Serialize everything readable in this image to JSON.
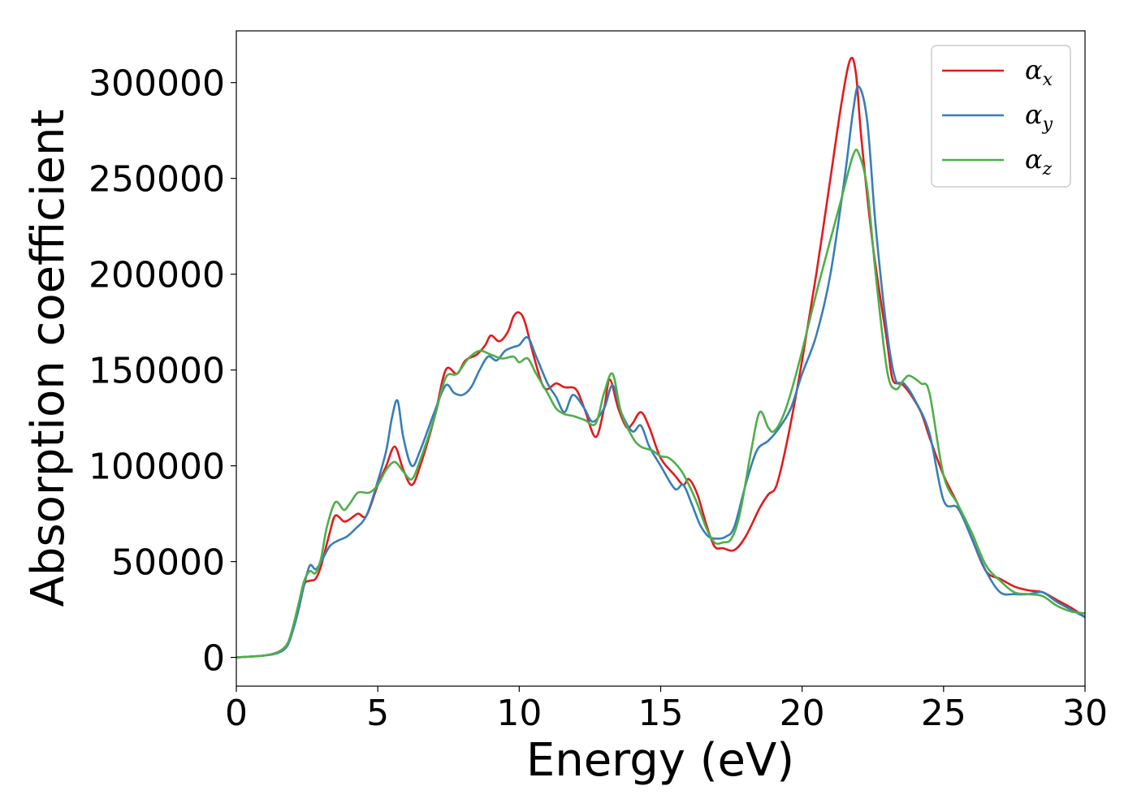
{
  "chart_data": {
    "type": "line",
    "xlabel": "Energy (eV)",
    "ylabel": "Absorption coefficient",
    "xlim": [
      0,
      30
    ],
    "ylim": [
      -15000,
      327000
    ],
    "xticks": [
      0,
      5,
      10,
      15,
      20,
      25,
      30
    ],
    "xtick_labels": [
      "0",
      "5",
      "10",
      "15",
      "20",
      "25",
      "30"
    ],
    "yticks": [
      0,
      50000,
      100000,
      150000,
      200000,
      250000,
      300000
    ],
    "ytick_labels": [
      "0",
      "50000",
      "100000",
      "150000",
      "200000",
      "250000",
      "300000"
    ],
    "grid": false,
    "legend_position": "top-right",
    "series": [
      {
        "name": "αx",
        "symbol": "α",
        "subscript": "x",
        "color": "#e41a1c",
        "x": [
          0,
          1,
          1.5,
          1.8,
          2.0,
          2.2,
          2.4,
          2.6,
          2.8,
          3.0,
          3.3,
          3.5,
          3.8,
          4.0,
          4.3,
          4.6,
          5.0,
          5.3,
          5.6,
          5.9,
          6.2,
          6.5,
          7.0,
          7.4,
          7.8,
          8.1,
          8.5,
          8.8,
          9.0,
          9.3,
          9.6,
          9.8,
          10.0,
          10.2,
          10.5,
          10.8,
          11.0,
          11.3,
          11.6,
          12.0,
          12.3,
          12.7,
          13.0,
          13.2,
          13.5,
          13.8,
          14.0,
          14.3,
          14.6,
          15.0,
          15.5,
          15.8,
          16.0,
          16.3,
          16.6,
          16.9,
          17.2,
          17.6,
          18.0,
          18.5,
          18.8,
          19.1,
          19.5,
          20.0,
          20.5,
          21.0,
          21.4,
          21.7,
          21.9,
          22.1,
          22.5,
          23.0,
          23.2,
          23.5,
          23.8,
          24.2,
          24.5,
          25.0,
          25.5,
          26.0,
          26.5,
          27.0,
          27.5,
          28.0,
          28.5,
          29.0,
          29.5,
          30.0
        ],
        "y": [
          0,
          1000,
          3000,
          7000,
          15000,
          25000,
          38000,
          40000,
          41000,
          48000,
          65000,
          74000,
          71000,
          72000,
          75000,
          74000,
          90000,
          100000,
          110000,
          98000,
          90000,
          100000,
          125000,
          150000,
          148000,
          155000,
          158000,
          163000,
          168000,
          165000,
          170000,
          178000,
          180000,
          175000,
          158000,
          143000,
          140000,
          143000,
          141000,
          140000,
          130000,
          115000,
          130000,
          145000,
          130000,
          120000,
          122000,
          128000,
          120000,
          104000,
          95000,
          90000,
          93000,
          85000,
          70000,
          58000,
          57000,
          56000,
          63000,
          78000,
          85000,
          90000,
          115000,
          155000,
          200000,
          250000,
          290000,
          312000,
          305000,
          270000,
          215000,
          165000,
          145000,
          143000,
          138000,
          128000,
          115000,
          95000,
          80000,
          62000,
          45000,
          41000,
          37000,
          35000,
          34000,
          30000,
          26000,
          21000
        ]
      },
      {
        "name": "αy",
        "symbol": "α",
        "subscript": "y",
        "color": "#377eb8",
        "x": [
          0,
          1,
          1.5,
          1.8,
          2.0,
          2.2,
          2.4,
          2.6,
          2.8,
          3.0,
          3.3,
          3.6,
          3.9,
          4.2,
          4.6,
          5.0,
          5.3,
          5.5,
          5.7,
          5.9,
          6.2,
          6.5,
          7.0,
          7.4,
          7.7,
          8.0,
          8.3,
          8.6,
          8.9,
          9.2,
          9.5,
          9.8,
          10.0,
          10.3,
          10.6,
          11.0,
          11.3,
          11.6,
          11.9,
          12.3,
          12.6,
          13.0,
          13.3,
          13.6,
          14.0,
          14.3,
          14.6,
          15.0,
          15.5,
          15.8,
          16.1,
          16.4,
          16.7,
          17.0,
          17.3,
          17.6,
          18.0,
          18.4,
          18.8,
          19.2,
          19.6,
          20.0,
          20.5,
          21.0,
          21.5,
          21.8,
          22.0,
          22.3,
          22.6,
          23.0,
          23.3,
          23.6,
          24.0,
          24.5,
          25.0,
          25.5,
          26.0,
          26.5,
          27.0,
          27.5,
          28.0,
          28.5,
          29.0,
          29.5,
          30.0
        ],
        "y": [
          0,
          1000,
          2500,
          6000,
          14000,
          25000,
          38000,
          48000,
          46000,
          50000,
          58000,
          61000,
          63000,
          67000,
          74000,
          92000,
          108000,
          125000,
          134000,
          115000,
          100000,
          108000,
          128000,
          142000,
          138000,
          137000,
          141000,
          150000,
          157000,
          155000,
          160000,
          162000,
          163000,
          167000,
          157000,
          143000,
          136000,
          128000,
          137000,
          130000,
          123000,
          130000,
          142000,
          128000,
          118000,
          121000,
          110000,
          100000,
          88000,
          90000,
          80000,
          69000,
          63000,
          62000,
          63000,
          68000,
          90000,
          108000,
          113000,
          120000,
          130000,
          148000,
          168000,
          200000,
          250000,
          285000,
          298000,
          280000,
          225000,
          170000,
          145000,
          143000,
          134000,
          117000,
          82000,
          78000,
          62000,
          45000,
          34000,
          33000,
          33000,
          34000,
          29000,
          25000,
          21000
        ]
      },
      {
        "name": "αz",
        "symbol": "α",
        "subscript": "z",
        "color": "#4daf4a",
        "x": [
          0,
          1,
          1.5,
          1.8,
          2.0,
          2.2,
          2.4,
          2.6,
          2.8,
          3.0,
          3.2,
          3.5,
          3.8,
          4.0,
          4.3,
          4.7,
          5.0,
          5.3,
          5.6,
          5.9,
          6.2,
          6.5,
          7.0,
          7.4,
          7.8,
          8.2,
          8.6,
          9.0,
          9.4,
          9.8,
          10.0,
          10.3,
          10.6,
          11.0,
          11.3,
          11.6,
          11.9,
          12.3,
          12.7,
          13.0,
          13.3,
          13.6,
          14.0,
          14.3,
          14.7,
          15.0,
          15.3,
          15.7,
          16.0,
          16.3,
          16.6,
          16.9,
          17.2,
          17.5,
          17.8,
          18.2,
          18.5,
          18.8,
          19.0,
          19.3,
          19.6,
          20.0,
          20.5,
          21.0,
          21.4,
          21.8,
          22.0,
          22.3,
          22.6,
          23.0,
          23.3,
          23.6,
          23.8,
          24.2,
          24.5,
          25.0,
          25.5,
          26.0,
          26.5,
          27.0,
          27.5,
          28.0,
          28.5,
          29.0,
          29.5,
          30.0
        ],
        "y": [
          0,
          1000,
          3000,
          7000,
          16000,
          28000,
          40000,
          45000,
          44000,
          52000,
          68000,
          81000,
          77000,
          80000,
          86000,
          86000,
          90000,
          98000,
          102000,
          97000,
          93000,
          103000,
          125000,
          146000,
          148000,
          156000,
          160000,
          158000,
          156000,
          157000,
          154000,
          156000,
          148000,
          138000,
          130000,
          127000,
          126000,
          124000,
          122000,
          138000,
          148000,
          128000,
          115000,
          110000,
          108000,
          105000,
          104000,
          98000,
          90000,
          80000,
          68000,
          60000,
          60000,
          62000,
          75000,
          108000,
          128000,
          120000,
          118000,
          125000,
          138000,
          160000,
          190000,
          218000,
          240000,
          262000,
          263000,
          245000,
          200000,
          150000,
          140000,
          145000,
          147000,
          143000,
          138000,
          95000,
          80000,
          65000,
          48000,
          40000,
          34000,
          33000,
          32000,
          27000,
          24000,
          23000
        ]
      }
    ]
  }
}
